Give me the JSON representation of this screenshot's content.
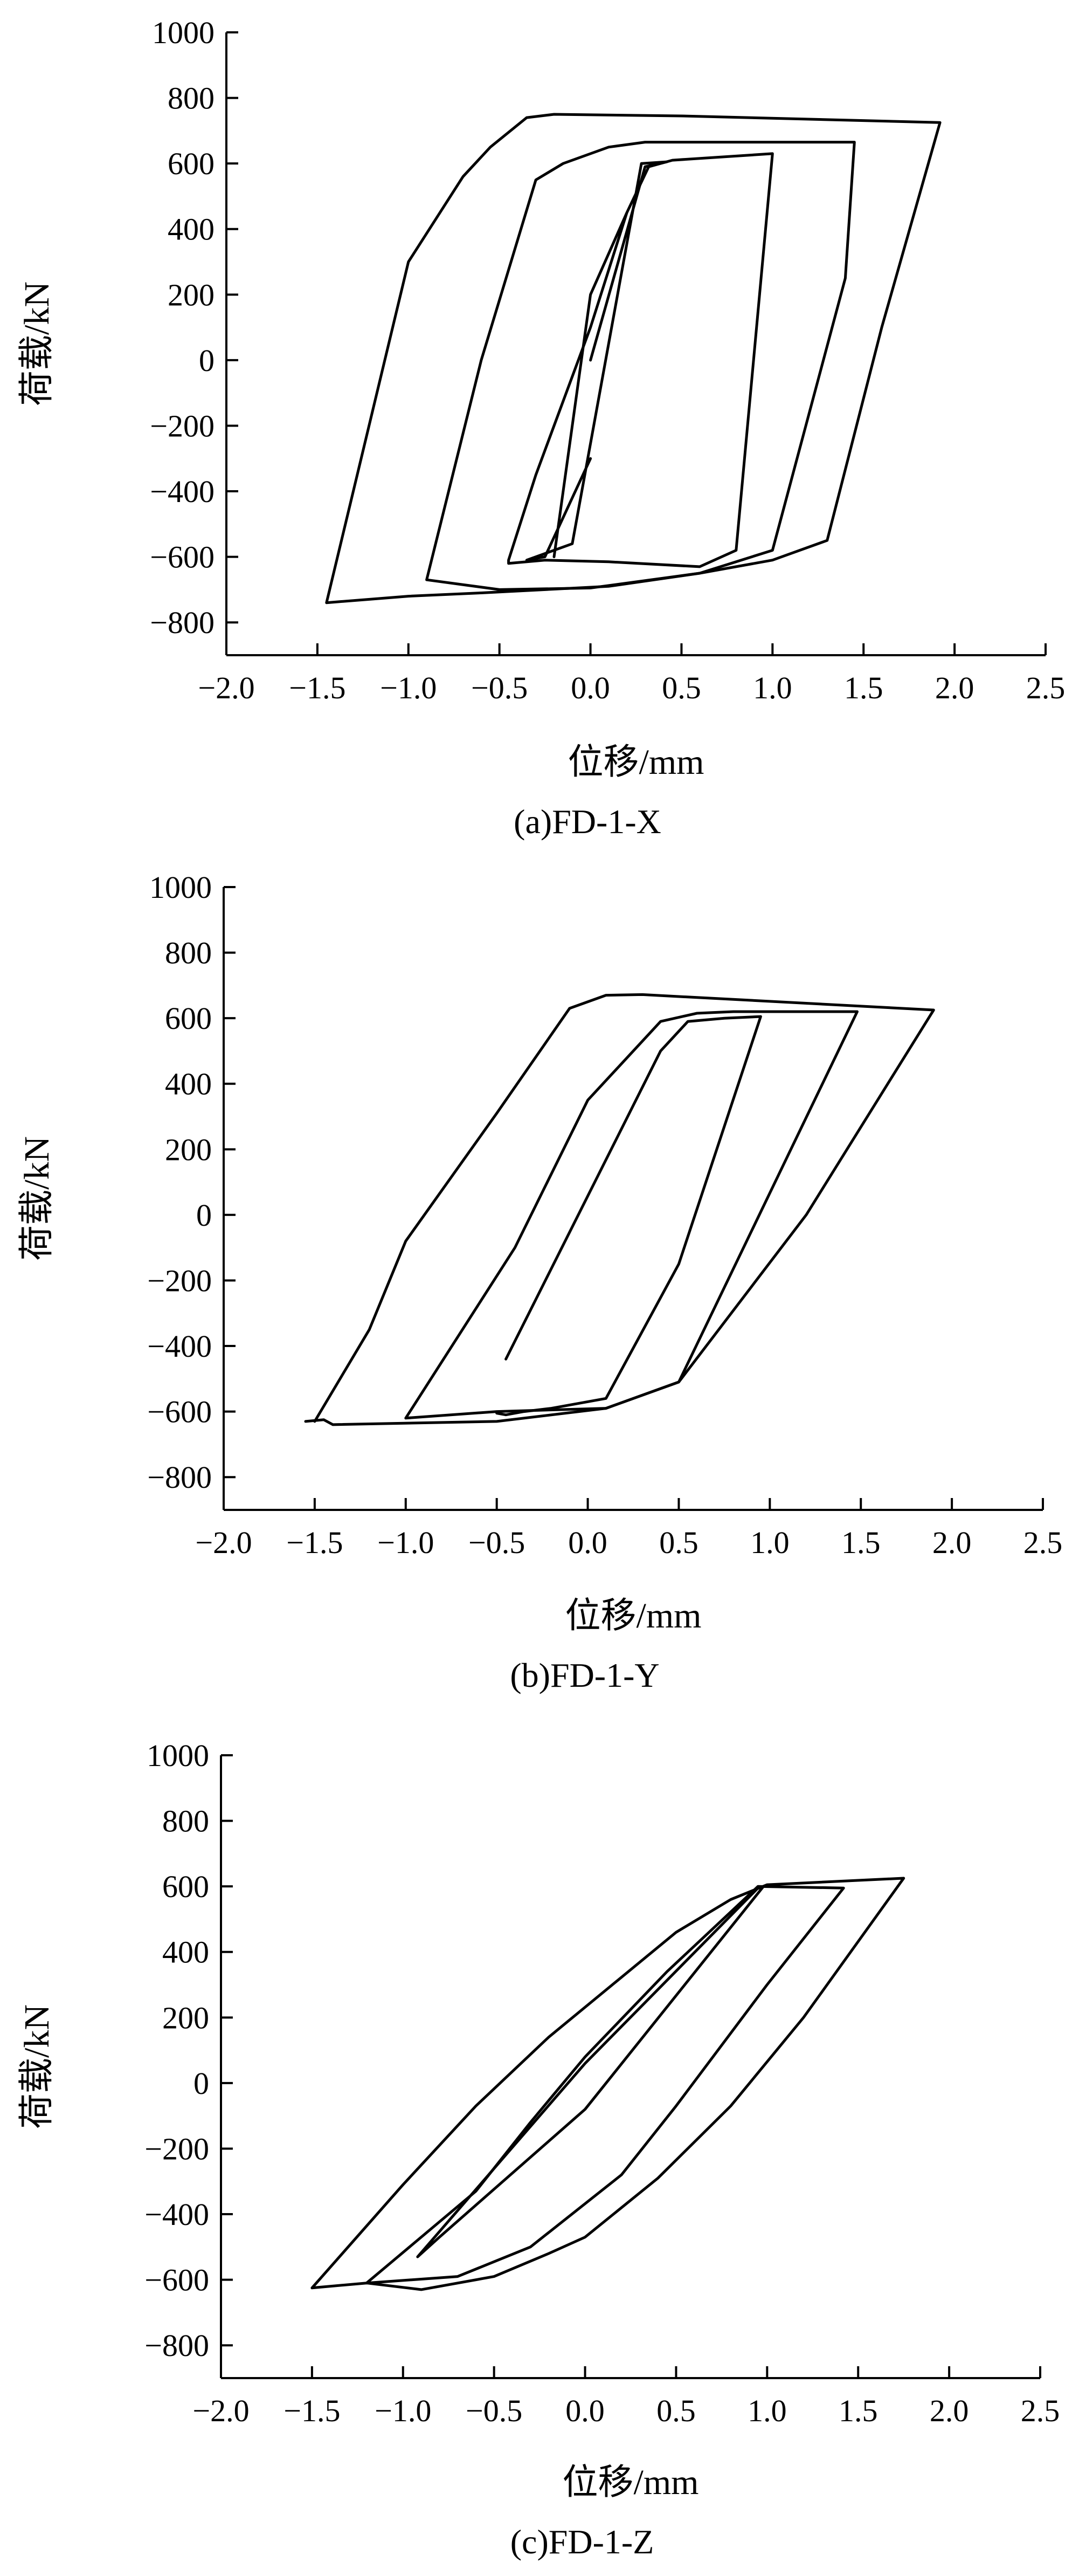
{
  "chart_data": [
    {
      "type": "line",
      "caption": "(a)FD-1-X",
      "xlabel": "位移/mm",
      "ylabel": "荷载/kN",
      "xlim": [
        -2.0,
        2.5
      ],
      "ylim": [
        -900,
        1000
      ],
      "xticks": [
        -2.0,
        -1.5,
        -1.0,
        -0.5,
        0.0,
        0.5,
        1.0,
        1.5,
        2.0,
        2.5
      ],
      "xtick_labels": [
        "−2.0",
        "−1.5",
        "−1.0",
        "−0.5",
        "0.0",
        "0.5",
        "1.0",
        "1.5",
        "2.0",
        "2.5"
      ],
      "yticks": [
        1000,
        800,
        600,
        400,
        200,
        0,
        -200,
        -400,
        -600,
        -800
      ],
      "ytick_labels": [
        "1000",
        "800",
        "600",
        "400",
        "200",
        "0",
        "−200",
        "−400",
        "−600",
        "−800"
      ],
      "series": [
        {
          "x": [
            0.0,
            0.3,
            0.38,
            0.42,
            0.28,
            -0.1,
            -0.35,
            -0.25,
            0.0
          ],
          "y": [
            0,
            590,
            600,
            605,
            600,
            -560,
            -610,
            -600,
            -300
          ]
        },
        {
          "x": [
            -0.2,
            0.0,
            0.2,
            0.32,
            0.45,
            1.0,
            0.8,
            0.6,
            0.1,
            -0.25,
            -0.45,
            -0.45,
            -0.3,
            0.0,
            0.2
          ],
          "y": [
            -600,
            200,
            450,
            590,
            610,
            630,
            -580,
            -630,
            -615,
            -610,
            -620,
            -610,
            -350,
            100,
            450
          ]
        },
        {
          "x": [
            -0.6,
            -0.3,
            -0.15,
            0.1,
            0.3,
            1.45,
            1.4,
            1.0,
            0.6,
            0.0,
            -0.5,
            -0.9,
            -0.6
          ],
          "y": [
            0,
            550,
            600,
            650,
            665,
            665,
            250,
            -580,
            -650,
            -695,
            -700,
            -670,
            0
          ]
        },
        {
          "x": [
            -1.0,
            -0.7,
            -0.55,
            -0.35,
            -0.2,
            0.5,
            1.92,
            1.6,
            1.3,
            1.0,
            0.6,
            0.1,
            -0.6,
            -1.0,
            -1.45,
            -1.0
          ],
          "y": [
            300,
            560,
            650,
            740,
            750,
            745,
            725,
            100,
            -550,
            -610,
            -650,
            -690,
            -710,
            -720,
            -740,
            300
          ]
        }
      ]
    },
    {
      "type": "line",
      "caption": "(b)FD-1-Y",
      "xlabel": "位移/mm",
      "ylabel": "荷载/kN",
      "xlim": [
        -2.0,
        2.5
      ],
      "ylim": [
        -900,
        1000
      ],
      "xticks": [
        -2.0,
        -1.5,
        -1.0,
        -0.5,
        0.0,
        0.5,
        1.0,
        1.5,
        2.0,
        2.5
      ],
      "xtick_labels": [
        "−2.0",
        "−1.5",
        "−1.0",
        "−0.5",
        "0.0",
        "0.5",
        "1.0",
        "1.5",
        "2.0",
        "2.5"
      ],
      "yticks": [
        1000,
        800,
        600,
        400,
        200,
        0,
        -200,
        -400,
        -600,
        -800
      ],
      "ytick_labels": [
        "1000",
        "800",
        "600",
        "400",
        "200",
        "0",
        "−200",
        "−400",
        "−600",
        "−800"
      ],
      "series": [
        {
          "x": [
            -0.45,
            0.4,
            0.55,
            0.75,
            0.95,
            0.5,
            0.1,
            -0.2,
            -0.35,
            -0.45,
            -0.5
          ],
          "y": [
            -440,
            500,
            590,
            600,
            605,
            -150,
            -560,
            -590,
            -600,
            -610,
            -605
          ]
        },
        {
          "x": [
            0.0,
            0.4,
            0.6,
            0.8,
            1.48,
            0.5,
            0.1,
            -0.5,
            -1.0,
            -0.4,
            0.0
          ],
          "y": [
            350,
            590,
            615,
            620,
            620,
            -510,
            -590,
            -600,
            -620,
            -100,
            350
          ]
        },
        {
          "x": [
            -1.5,
            -1.2,
            -1.0,
            -0.5,
            -0.1,
            0.1,
            0.3,
            1.9,
            1.2,
            0.5,
            0.1,
            -0.5,
            -1.4,
            -1.45,
            -1.55
          ],
          "y": [
            -630,
            -350,
            -80,
            310,
            630,
            670,
            672,
            625,
            0,
            -510,
            -590,
            -630,
            -640,
            -625,
            -630
          ]
        }
      ]
    },
    {
      "type": "line",
      "caption": "(c)FD-1-Z",
      "xlabel": "位移/mm",
      "ylabel": "荷载/kN",
      "xlim": [
        -2.0,
        2.5
      ],
      "ylim": [
        -900,
        1000
      ],
      "xticks": [
        -2.0,
        -1.5,
        -1.0,
        -0.5,
        0.0,
        0.5,
        1.0,
        1.5,
        2.0,
        2.5
      ],
      "xtick_labels": [
        "−2.0",
        "−1.5",
        "−1.0",
        "−0.5",
        "0.0",
        "0.5",
        "1.0",
        "1.5",
        "2.0",
        "2.5"
      ],
      "yticks": [
        1000,
        800,
        600,
        400,
        200,
        0,
        -200,
        -400,
        -600,
        -800
      ],
      "ytick_labels": [
        "1000",
        "800",
        "600",
        "400",
        "200",
        "0",
        "−200",
        "−400",
        "−600",
        "−800"
      ],
      "series": [
        {
          "x": [
            -0.92,
            0.0,
            0.95,
            0.98,
            0.0,
            -0.8,
            -0.92
          ],
          "y": [
            -530,
            60,
            595,
            600,
            -80,
            -470,
            -530
          ]
        },
        {
          "x": [
            -0.6,
            -0.3,
            0.0,
            0.45,
            0.7,
            0.95,
            1.42,
            1.0,
            0.5,
            0.2,
            -0.3,
            -0.7,
            -1.2,
            -0.6
          ],
          "y": [
            -330,
            -120,
            80,
            340,
            470,
            600,
            595,
            300,
            -70,
            -280,
            -500,
            -590,
            -610,
            -330
          ]
        },
        {
          "x": [
            -1.5,
            -1.0,
            -0.6,
            -0.2,
            0.5,
            0.8,
            1.0,
            1.75,
            1.2,
            0.8,
            0.4,
            0.0,
            -0.2,
            -0.5,
            -0.9,
            -1.2,
            -1.5
          ],
          "y": [
            -625,
            -310,
            -70,
            140,
            460,
            560,
            605,
            625,
            200,
            -70,
            -290,
            -470,
            -520,
            -590,
            -630,
            -610,
            -625
          ]
        }
      ]
    }
  ]
}
